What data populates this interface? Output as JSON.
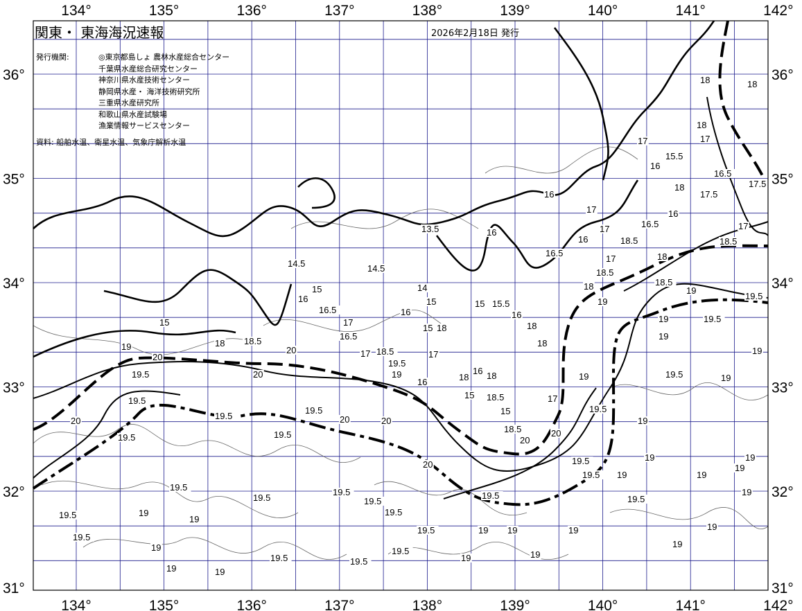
{
  "title": "関東・ 東海海況速報",
  "issued": "2026年2月18日 発行",
  "institutions_label": "発行機関:",
  "institutions": [
    "◎東京都島しょ 農林水産総合センター",
    "千葉県水産総合研究センター",
    "神奈川県水産技術センター",
    "静岡県水産・ 海洋技術研究所",
    "三重県水産研究所",
    "和歌山県水産試験場",
    "漁業情報サービスセンター"
  ],
  "source": "資料: 船舶水温、衛星水温、気象庁解析水温",
  "longitude_ticks": [
    "134°",
    "135°",
    "136°",
    "137°",
    "138°",
    "139°",
    "140°",
    "141°",
    "142°"
  ],
  "latitude_ticks": [
    "36°",
    "35°",
    "34°",
    "33°",
    "32°",
    "31°"
  ],
  "contour_labels": [
    "18",
    "18.5",
    "20",
    "19",
    "19.5",
    "19.5",
    "20",
    "19.5",
    "19.5",
    "19.5",
    "19.5",
    "20",
    "20",
    "20",
    "20",
    "20",
    "18.5",
    "20",
    "20",
    "19.5",
    "19.5",
    "19.5",
    "19",
    "18",
    "19",
    "18.5",
    "18",
    "18.5",
    "17",
    "18.5",
    "19",
    "19.5",
    "19.5",
    "19",
    "19",
    "19",
    "19",
    "19.5",
    "19",
    "19",
    "19",
    "19.5",
    "19",
    "19",
    "19",
    "19",
    "19",
    "19.5",
    "19.5",
    "19",
    "19.5",
    "19.5",
    "19",
    "19",
    "19",
    "19",
    "19.5",
    "19.5",
    "19.5",
    "19.5",
    "19.5",
    "19.5",
    "19.5",
    "19.5",
    "19",
    "19",
    "19",
    "19",
    "19",
    "19",
    "14.5",
    "13.5",
    "14",
    "15",
    "15",
    "15.5",
    "16",
    "16",
    "15",
    "14.5",
    "16.5",
    "16.5",
    "17",
    "17",
    "15",
    "16",
    "15",
    "18",
    "18.5",
    "19.5",
    "19",
    "16",
    "17",
    "18",
    "15",
    "16",
    "18",
    "18.5",
    "18",
    "18",
    "17",
    "15",
    "16",
    "16",
    "16.5",
    "17",
    "16",
    "17",
    "18.5",
    "17",
    "16.5",
    "16",
    "16",
    "15.5",
    "17",
    "18",
    "16.5",
    "17.5",
    "17.5",
    "17",
    "18",
    "18",
    "18"
  ],
  "colors": {
    "isotherm": "#000000",
    "grid": "#1a1a8c",
    "minor_contour": "#555555"
  }
}
